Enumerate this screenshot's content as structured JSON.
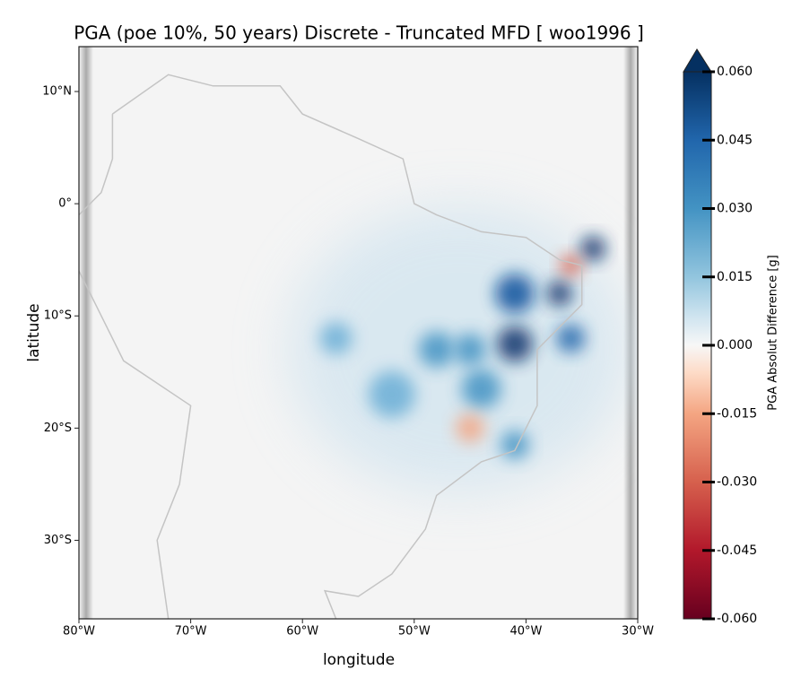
{
  "title": "PGA (poe 10%, 50 years) Discrete - Truncated MFD [ woo1996 ]",
  "x_label": "longitude",
  "y_label": "latitude",
  "xlim": [
    -80,
    -30
  ],
  "ylim": [
    -37,
    14
  ],
  "xticks": [
    {
      "value": -80,
      "label": "80°W"
    },
    {
      "value": -70,
      "label": "70°W"
    },
    {
      "value": -60,
      "label": "60°W"
    },
    {
      "value": -50,
      "label": "50°W"
    },
    {
      "value": -40,
      "label": "40°W"
    },
    {
      "value": -30,
      "label": "30°W"
    }
  ],
  "yticks": [
    {
      "value": 10,
      "label": "10°N"
    },
    {
      "value": 0,
      "label": "0°"
    },
    {
      "value": -10,
      "label": "10°S"
    },
    {
      "value": -20,
      "label": "20°S"
    },
    {
      "value": -30,
      "label": "30°S"
    }
  ],
  "colorbar": {
    "label": "PGA Absolut Difference [g]",
    "lim": [
      -0.06,
      0.06
    ],
    "ticks": [
      {
        "value": 0.06,
        "label": "0.060"
      },
      {
        "value": 0.045,
        "label": "0.045"
      },
      {
        "value": 0.03,
        "label": "0.030"
      },
      {
        "value": 0.015,
        "label": "0.015"
      },
      {
        "value": 0,
        "label": "0.000"
      },
      {
        "value": -0.015,
        "label": "-0.015"
      },
      {
        "value": -0.03,
        "label": "-0.030"
      },
      {
        "value": -0.045,
        "label": "-0.045"
      },
      {
        "value": -0.06,
        "label": "-0.060"
      }
    ]
  }
}
